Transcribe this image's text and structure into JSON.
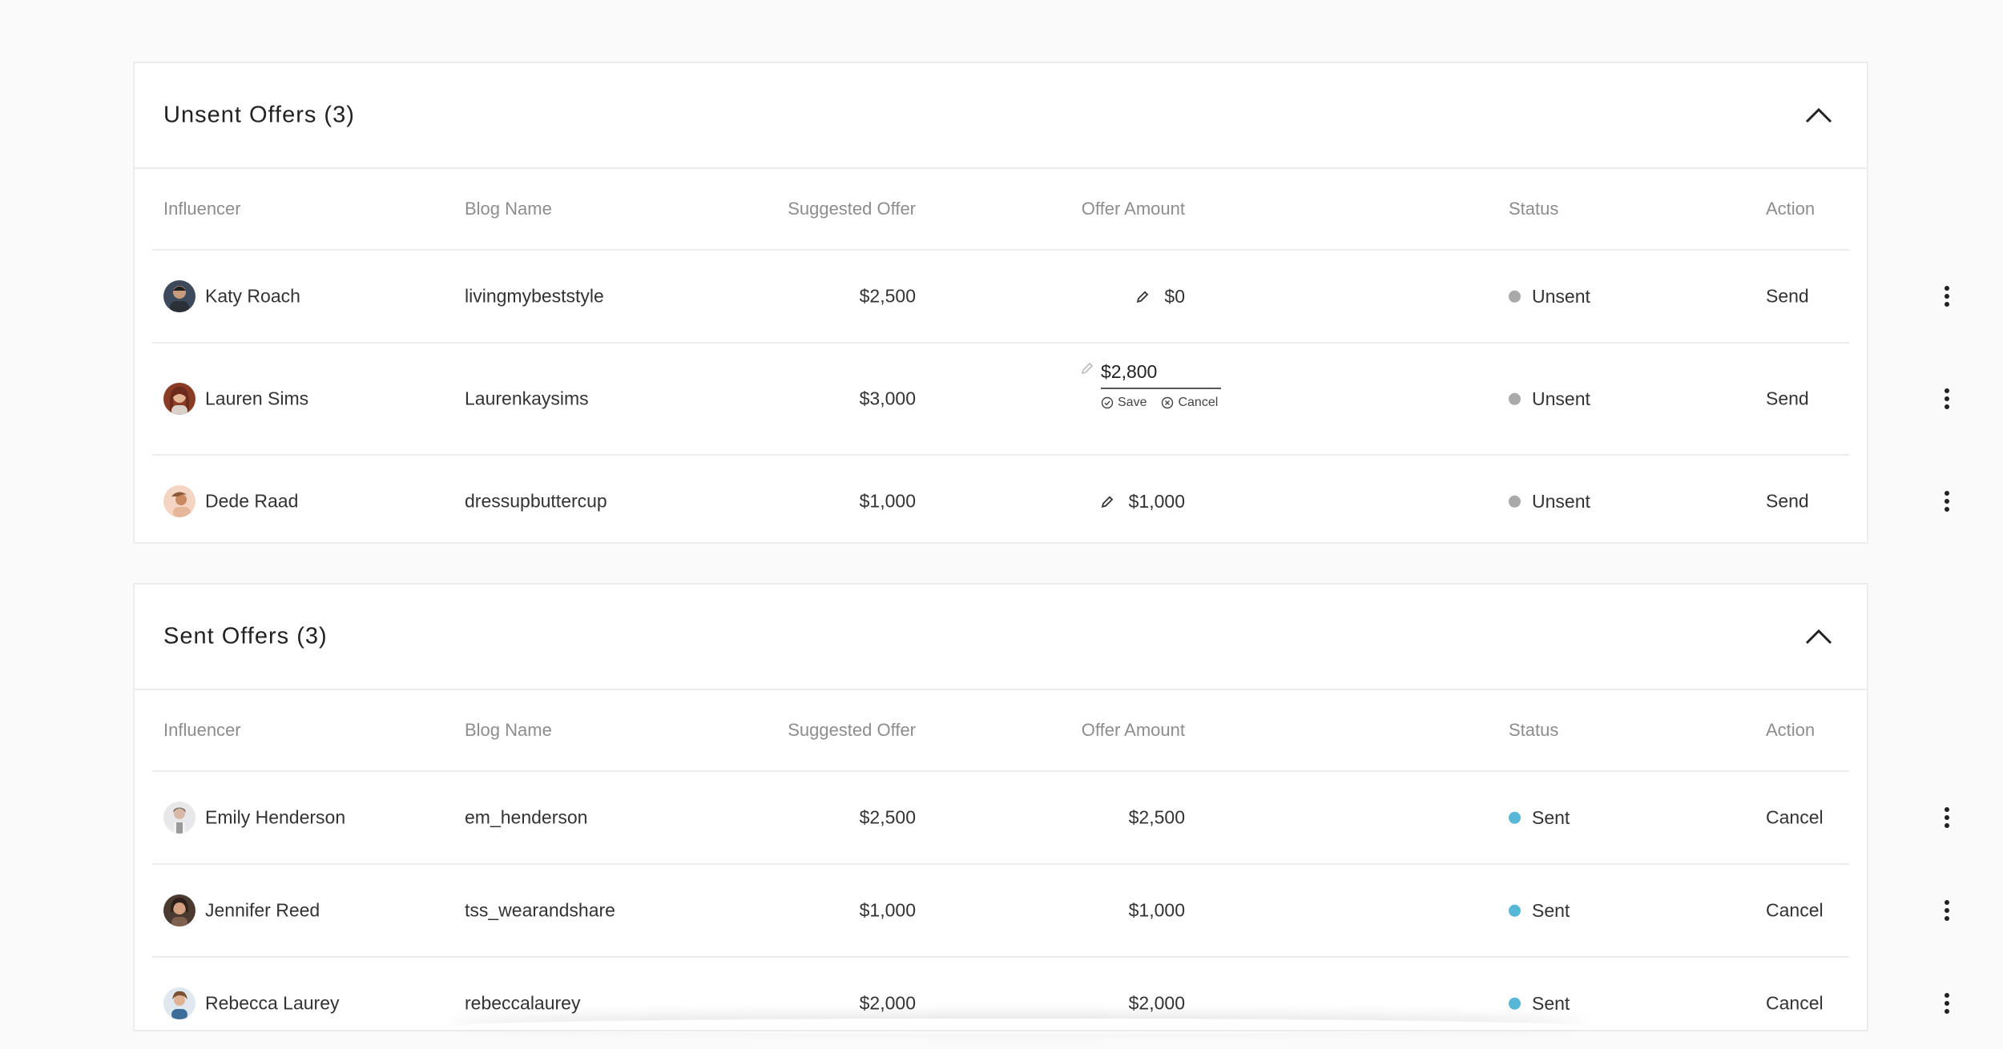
{
  "colors": {
    "unsent_dot": "#a9a9a9",
    "sent_dot": "#56b8d6",
    "border": "#ececec"
  },
  "columns": {
    "influencer": "Influencer",
    "blog": "Blog Name",
    "suggested": "Suggested Offer",
    "offer": "Offer Amount",
    "status": "Status",
    "action": "Action"
  },
  "unsent": {
    "title": "Unsent Offers (3)",
    "rows": [
      {
        "name": "Katy Roach",
        "blog": "livingmybeststyle",
        "suggested": "$2,500",
        "offer": "$0",
        "status": "Unsent",
        "action": "Send"
      },
      {
        "name": "Lauren Sims",
        "blog": "Laurenkaysims",
        "suggested": "$3,000",
        "offer": "$2,800",
        "status": "Unsent",
        "action": "Send",
        "save_label": "Save",
        "cancel_label": "Cancel"
      },
      {
        "name": "Dede Raad",
        "blog": "dressupbuttercup",
        "suggested": "$1,000",
        "offer": "$1,000",
        "status": "Unsent",
        "action": "Send"
      }
    ]
  },
  "sent": {
    "title": "Sent Offers (3)",
    "rows": [
      {
        "name": "Emily Henderson",
        "blog": "em_henderson",
        "suggested": "$2,500",
        "offer": "$2,500",
        "status": "Sent",
        "action": "Cancel"
      },
      {
        "name": "Jennifer Reed",
        "blog": "tss_wearandshare",
        "suggested": "$1,000",
        "offer": "$1,000",
        "status": "Sent",
        "action": "Cancel"
      },
      {
        "name": "Rebecca Laurey",
        "blog": "rebeccalaurey",
        "suggested": "$2,000",
        "offer": "$2,000",
        "status": "Sent",
        "action": "Cancel"
      }
    ]
  }
}
